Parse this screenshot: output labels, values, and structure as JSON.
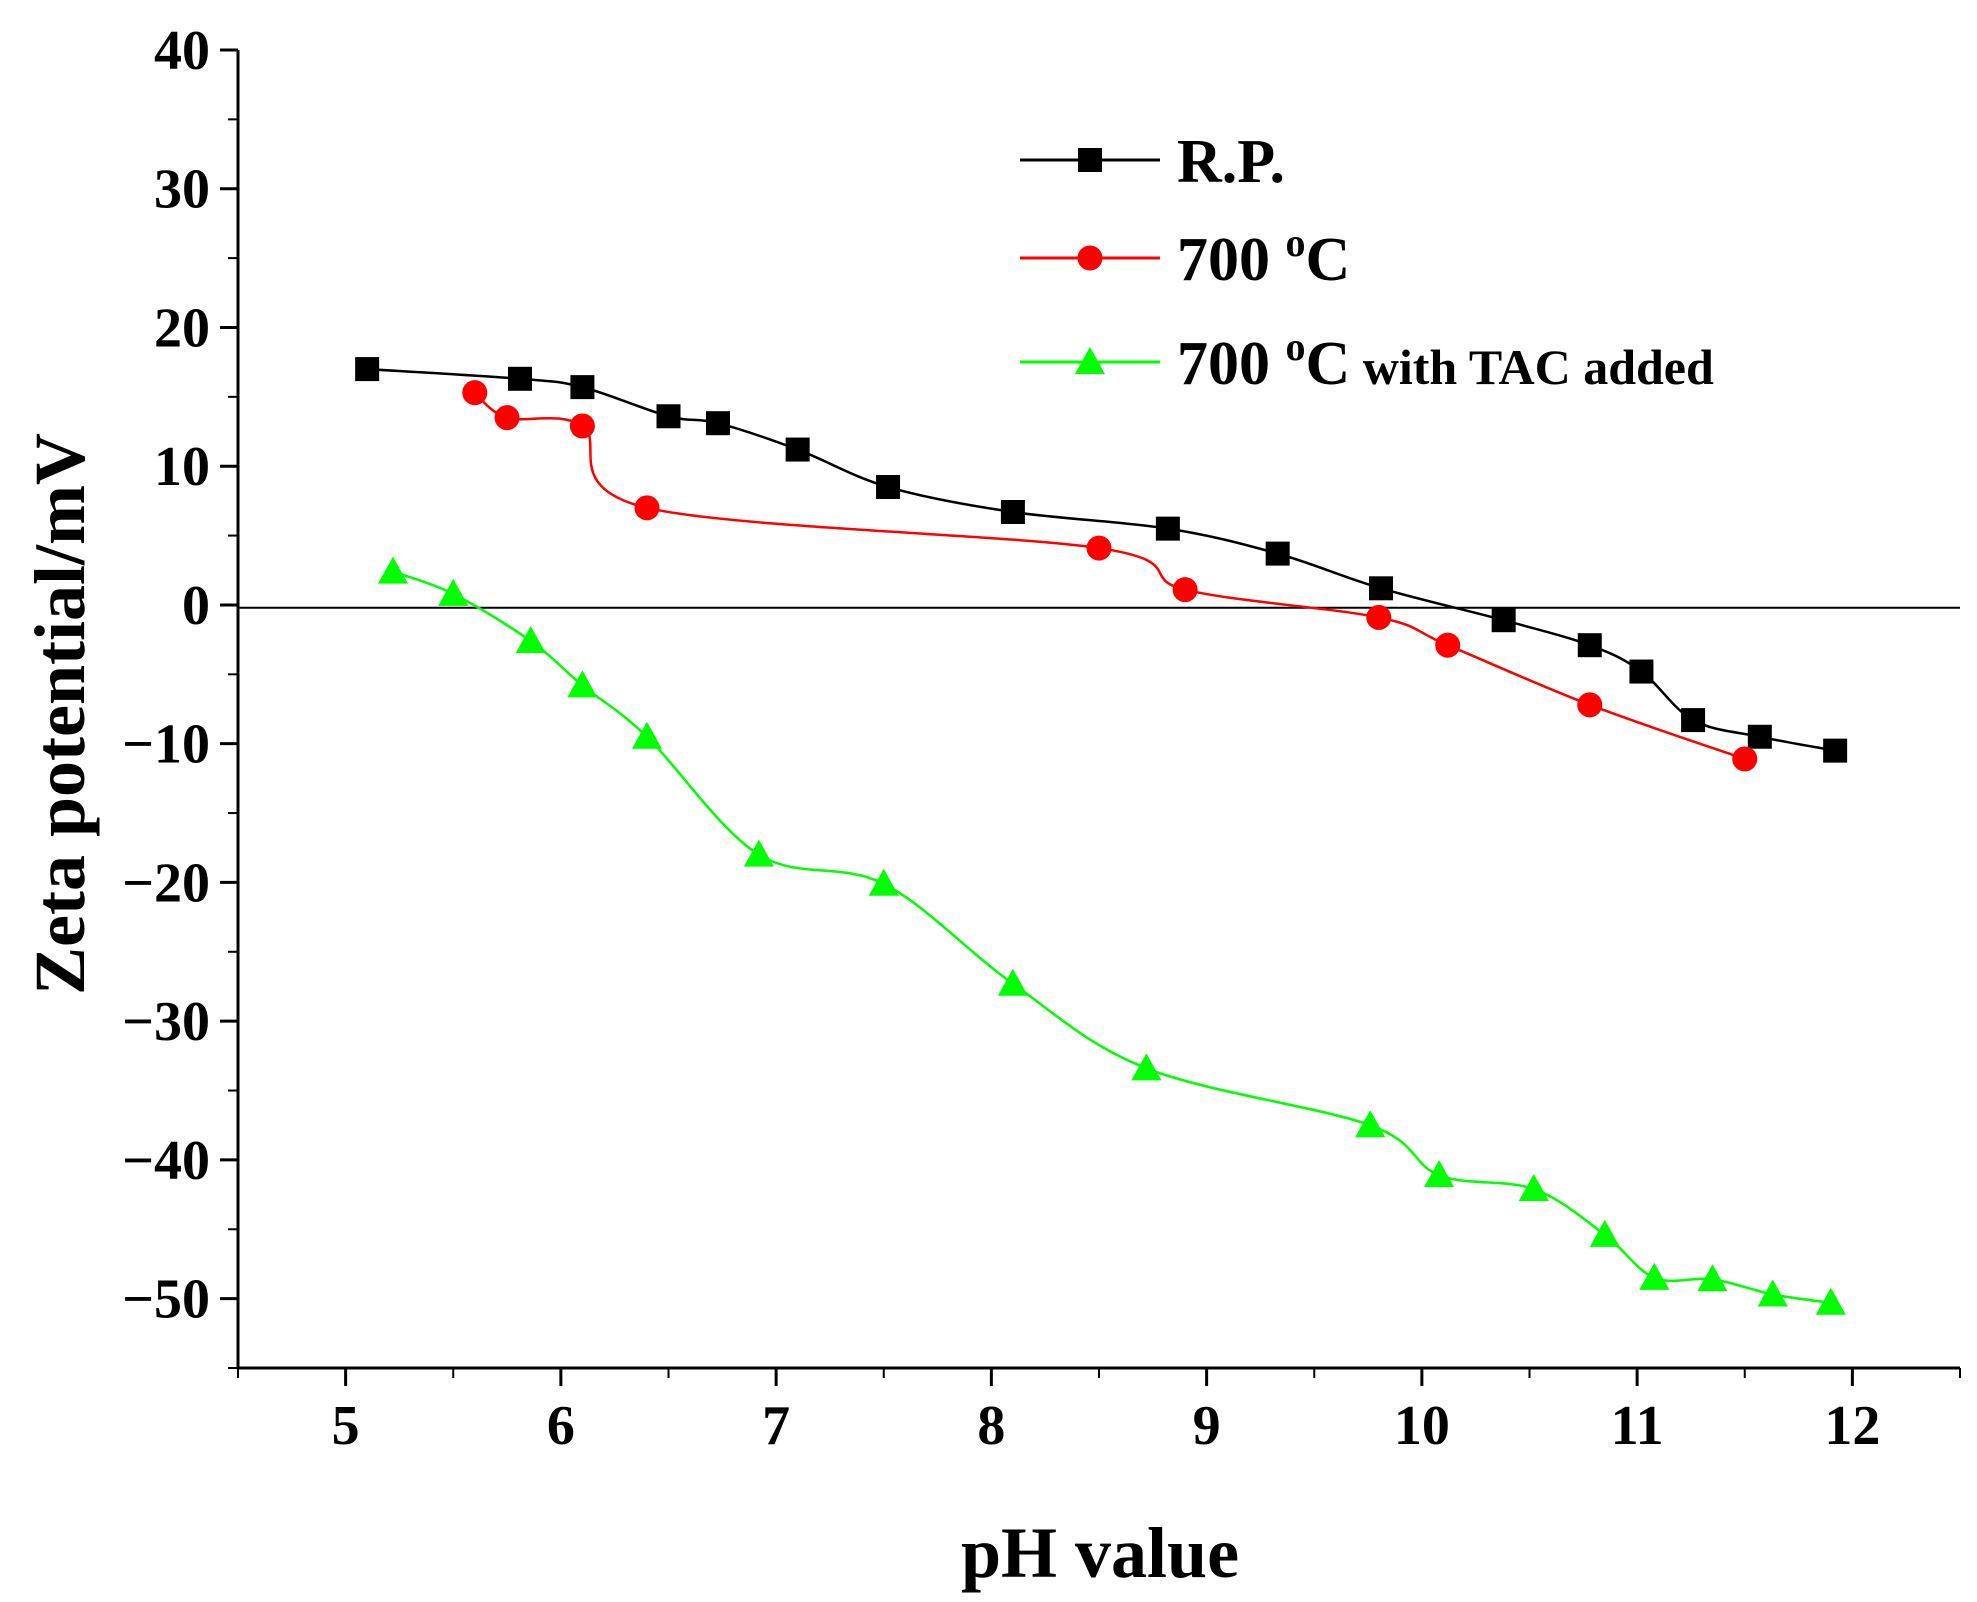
{
  "chart_data": {
    "type": "line",
    "title": "",
    "xlabel": "pH value",
    "ylabel": "Zeta potential/mV",
    "xlim": [
      4.5,
      12.5
    ],
    "ylim": [
      -55,
      40
    ],
    "xticks": [
      5,
      6,
      7,
      8,
      9,
      10,
      11,
      12
    ],
    "yticks": [
      40,
      30,
      20,
      10,
      0,
      -10,
      -20,
      -30,
      -40,
      -50
    ],
    "xtick_labels": [
      "5",
      "6",
      "7",
      "8",
      "9",
      "10",
      "11",
      "12"
    ],
    "ytick_labels": [
      "40",
      "30",
      "20",
      "10",
      "0",
      "−10",
      "−20",
      "−30",
      "−40",
      "−50"
    ],
    "reference_line_y": -0.2,
    "legend_position": "top-right",
    "series": [
      {
        "name": "R.P.",
        "legend_main": "R.P.",
        "legend_sup": "",
        "legend_rest": "",
        "color": "#000000",
        "marker": "square",
        "x": [
          5.1,
          5.81,
          6.1,
          6.5,
          6.73,
          7.1,
          7.52,
          8.1,
          8.82,
          9.33,
          9.81,
          10.38,
          10.78,
          11.02,
          11.26,
          11.57,
          11.92
        ],
        "y": [
          17.0,
          16.3,
          15.7,
          13.6,
          13.1,
          11.2,
          8.5,
          6.7,
          5.5,
          3.7,
          1.2,
          -1.1,
          -2.9,
          -4.8,
          -8.3,
          -9.5,
          -10.5
        ]
      },
      {
        "name": "700 °C",
        "legend_main": "700 ",
        "legend_sup": "o",
        "legend_rest": "C",
        "color": "#ff0000",
        "marker": "circle",
        "x": [
          5.6,
          5.75,
          6.1,
          6.4,
          8.5,
          8.9,
          9.8,
          10.12,
          10.78,
          11.5
        ],
        "y": [
          15.3,
          13.5,
          12.9,
          7.0,
          4.1,
          1.1,
          -0.9,
          -2.9,
          -7.2,
          -11.1
        ]
      },
      {
        "name": "700 °C with TAC added",
        "legend_main": "700 ",
        "legend_sup": "o",
        "legend_rest": "C",
        "legend_small": " with TAC added",
        "color": "#00ff00",
        "marker": "triangle",
        "x": [
          5.22,
          5.5,
          5.86,
          6.1,
          6.4,
          6.92,
          7.5,
          8.1,
          8.72,
          9.76,
          10.08,
          10.52,
          10.85,
          11.08,
          11.35,
          11.63,
          11.9
        ],
        "y": [
          2.4,
          0.8,
          -2.6,
          -5.8,
          -9.5,
          -18.0,
          -20.1,
          -27.3,
          -33.4,
          -37.5,
          -41.1,
          -42.1,
          -45.4,
          -48.5,
          -48.6,
          -49.7,
          -50.3
        ]
      }
    ]
  }
}
